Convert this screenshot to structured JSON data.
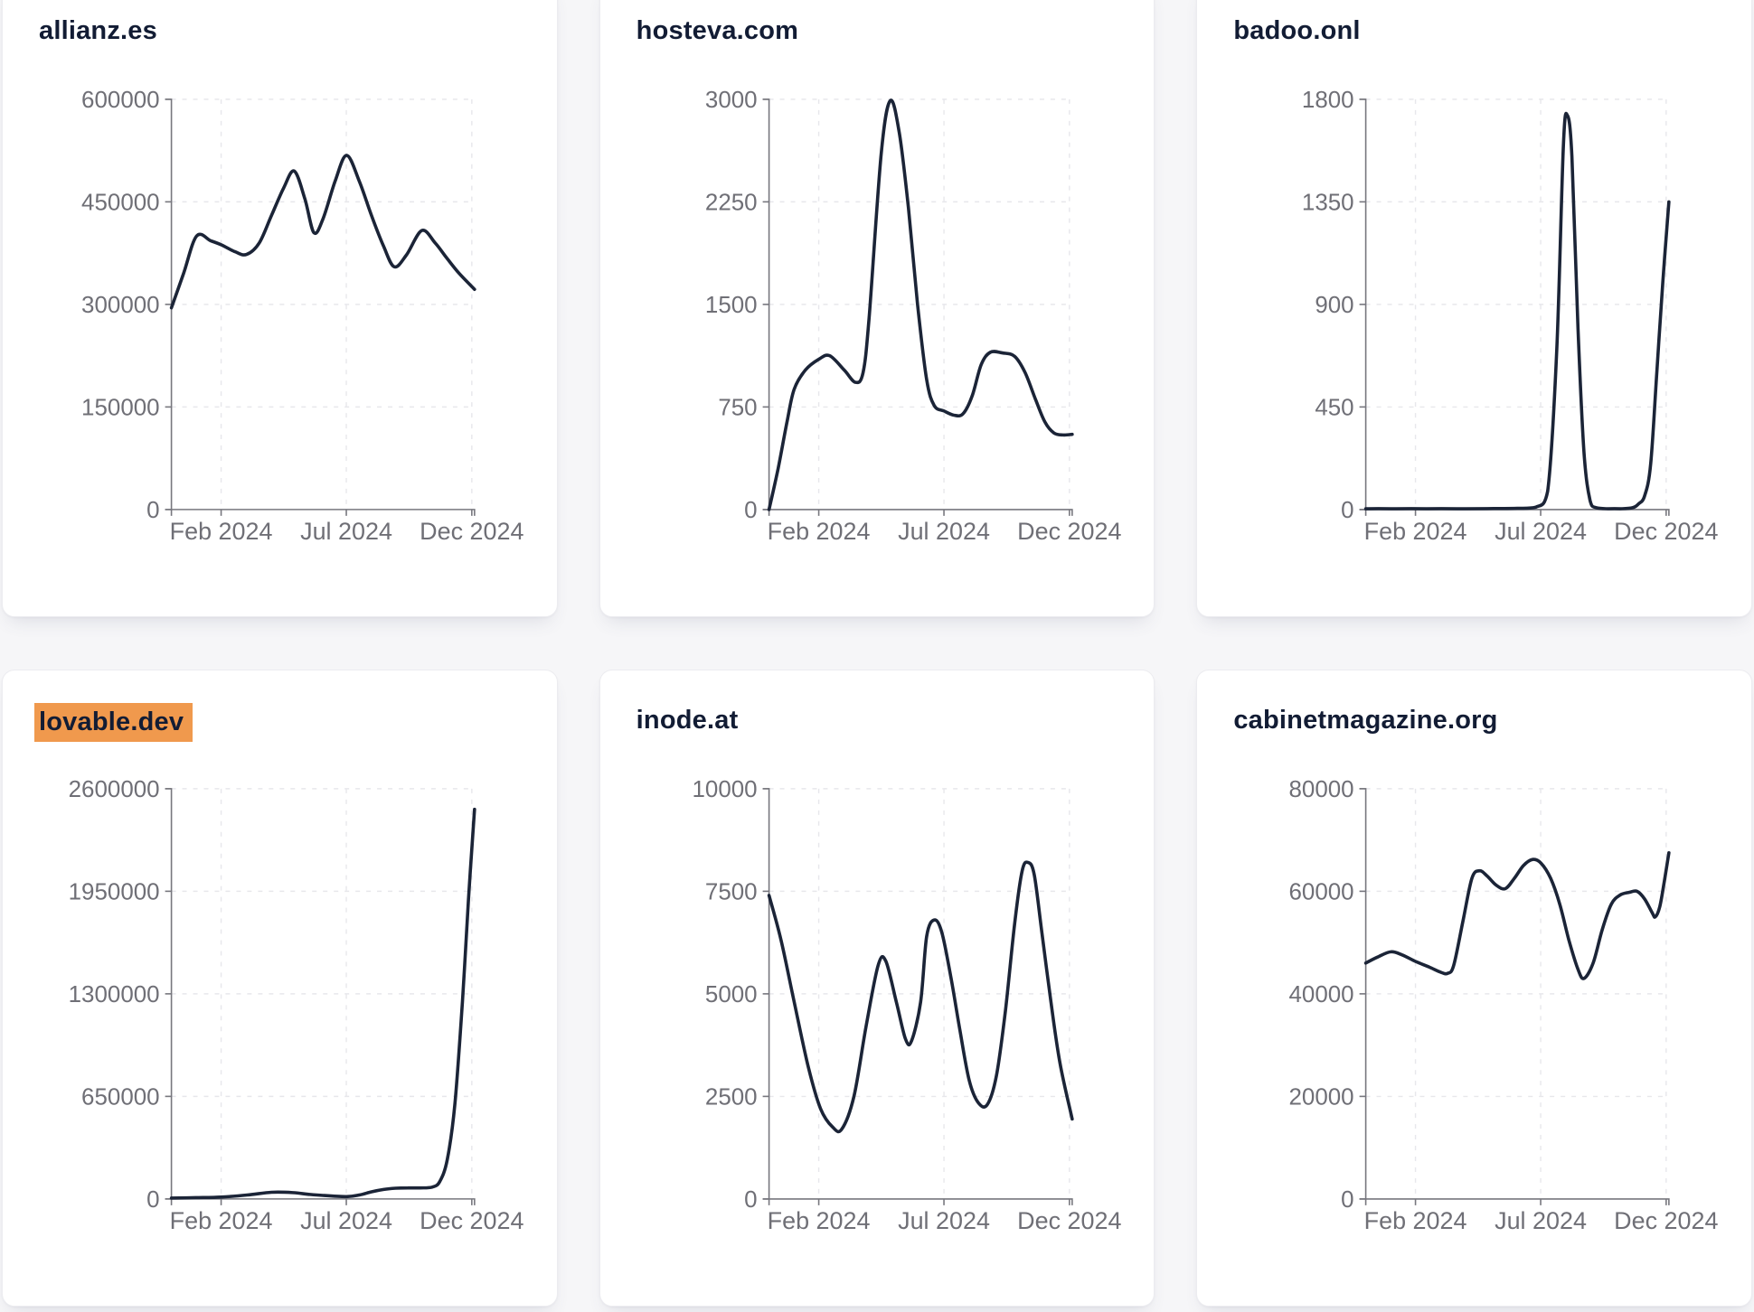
{
  "page": {
    "background_color": "#f6f6f8",
    "card_background": "#ffffff",
    "line_color": "#1b2437",
    "axis_color": "#77777e",
    "grid_color": "#e7e7eb",
    "title_color": "#121c34",
    "highlight_color": "#f0994d"
  },
  "chart_data": [
    {
      "type": "line",
      "title": "allianz.es",
      "title_highlighted": false,
      "ylim": [
        0,
        600000
      ],
      "yticks": [
        0,
        150000,
        300000,
        450000,
        600000
      ],
      "xticks": [
        {
          "pos": 0.164,
          "label": "Feb 2024"
        },
        {
          "pos": 0.577,
          "label": "Jul 2024"
        },
        {
          "pos": 0.991,
          "label": "Dec 2024"
        }
      ],
      "grid": true,
      "x_unit": "fraction_of_axis",
      "points": [
        [
          0,
          295000
        ],
        [
          0.04,
          345000
        ],
        [
          0.083,
          400000
        ],
        [
          0.13,
          393000
        ],
        [
          0.165,
          387000
        ],
        [
          0.21,
          377000
        ],
        [
          0.248,
          373000
        ],
        [
          0.29,
          390000
        ],
        [
          0.33,
          430000
        ],
        [
          0.37,
          470000
        ],
        [
          0.405,
          495000
        ],
        [
          0.44,
          455000
        ],
        [
          0.47,
          405000
        ],
        [
          0.5,
          425000
        ],
        [
          0.54,
          480000
        ],
        [
          0.578,
          518000
        ],
        [
          0.62,
          480000
        ],
        [
          0.66,
          430000
        ],
        [
          0.7,
          385000
        ],
        [
          0.735,
          355000
        ],
        [
          0.775,
          372000
        ],
        [
          0.826,
          408000
        ],
        [
          0.87,
          390000
        ],
        [
          0.908,
          368000
        ],
        [
          0.95,
          345000
        ],
        [
          1.0,
          322000
        ]
      ]
    },
    {
      "type": "line",
      "title": "hosteva.com",
      "title_highlighted": false,
      "ylim": [
        0,
        3000
      ],
      "yticks": [
        0,
        750,
        1500,
        2250,
        3000
      ],
      "xticks": [
        {
          "pos": 0.164,
          "label": "Feb 2024"
        },
        {
          "pos": 0.577,
          "label": "Jul 2024"
        },
        {
          "pos": 0.991,
          "label": "Dec 2024"
        }
      ],
      "grid": true,
      "x_unit": "fraction_of_axis",
      "points": [
        [
          0,
          0
        ],
        [
          0.03,
          300
        ],
        [
          0.06,
          650
        ],
        [
          0.083,
          880
        ],
        [
          0.12,
          1020
        ],
        [
          0.165,
          1100
        ],
        [
          0.2,
          1125
        ],
        [
          0.248,
          1020
        ],
        [
          0.285,
          930
        ],
        [
          0.31,
          1000
        ],
        [
          0.33,
          1400
        ],
        [
          0.37,
          2600
        ],
        [
          0.4,
          2990
        ],
        [
          0.43,
          2750
        ],
        [
          0.46,
          2200
        ],
        [
          0.49,
          1500
        ],
        [
          0.52,
          950
        ],
        [
          0.545,
          760
        ],
        [
          0.578,
          720
        ],
        [
          0.61,
          690
        ],
        [
          0.64,
          700
        ],
        [
          0.67,
          830
        ],
        [
          0.7,
          1060
        ],
        [
          0.73,
          1150
        ],
        [
          0.77,
          1145
        ],
        [
          0.81,
          1120
        ],
        [
          0.845,
          1000
        ],
        [
          0.88,
          800
        ],
        [
          0.91,
          640
        ],
        [
          0.94,
          560
        ],
        [
          0.97,
          545
        ],
        [
          1.0,
          550
        ]
      ]
    },
    {
      "type": "line",
      "title": "badoo.onl",
      "title_highlighted": false,
      "ylim": [
        0,
        1800
      ],
      "yticks": [
        0,
        450,
        900,
        1350,
        1800
      ],
      "xticks": [
        {
          "pos": 0.164,
          "label": "Feb 2024"
        },
        {
          "pos": 0.577,
          "label": "Jul 2024"
        },
        {
          "pos": 0.991,
          "label": "Dec 2024"
        }
      ],
      "grid": true,
      "x_unit": "fraction_of_axis",
      "points": [
        [
          0,
          3
        ],
        [
          0.1,
          3
        ],
        [
          0.2,
          3
        ],
        [
          0.3,
          3
        ],
        [
          0.4,
          4
        ],
        [
          0.5,
          5
        ],
        [
          0.56,
          10
        ],
        [
          0.6,
          80
        ],
        [
          0.63,
          700
        ],
        [
          0.652,
          1600
        ],
        [
          0.665,
          1730
        ],
        [
          0.68,
          1550
        ],
        [
          0.7,
          800
        ],
        [
          0.72,
          250
        ],
        [
          0.74,
          40
        ],
        [
          0.76,
          8
        ],
        [
          0.8,
          3
        ],
        [
          0.84,
          3
        ],
        [
          0.88,
          8
        ],
        [
          0.9,
          25
        ],
        [
          0.92,
          60
        ],
        [
          0.94,
          200
        ],
        [
          0.96,
          600
        ],
        [
          0.98,
          1000
        ],
        [
          1.0,
          1350
        ]
      ]
    },
    {
      "type": "line",
      "title": "lovable.dev",
      "title_highlighted": true,
      "ylim": [
        0,
        2600000
      ],
      "yticks": [
        0,
        650000,
        1300000,
        1950000,
        2600000
      ],
      "xticks": [
        {
          "pos": 0.164,
          "label": "Feb 2024"
        },
        {
          "pos": 0.577,
          "label": "Jul 2024"
        },
        {
          "pos": 0.991,
          "label": "Dec 2024"
        }
      ],
      "grid": true,
      "x_unit": "fraction_of_axis",
      "points": [
        [
          0,
          5000
        ],
        [
          0.08,
          8000
        ],
        [
          0.165,
          12000
        ],
        [
          0.25,
          25000
        ],
        [
          0.33,
          42000
        ],
        [
          0.4,
          40000
        ],
        [
          0.45,
          30000
        ],
        [
          0.5,
          22000
        ],
        [
          0.578,
          15000
        ],
        [
          0.62,
          25000
        ],
        [
          0.66,
          45000
        ],
        [
          0.7,
          60000
        ],
        [
          0.74,
          68000
        ],
        [
          0.78,
          70000
        ],
        [
          0.82,
          70000
        ],
        [
          0.86,
          75000
        ],
        [
          0.885,
          110000
        ],
        [
          0.91,
          250000
        ],
        [
          0.935,
          600000
        ],
        [
          0.96,
          1250000
        ],
        [
          0.98,
          1900000
        ],
        [
          1.0,
          2470000
        ]
      ]
    },
    {
      "type": "line",
      "title": "inode.at",
      "title_highlighted": false,
      "ylim": [
        0,
        10000
      ],
      "yticks": [
        0,
        2500,
        5000,
        7500,
        10000
      ],
      "xticks": [
        {
          "pos": 0.164,
          "label": "Feb 2024"
        },
        {
          "pos": 0.577,
          "label": "Jul 2024"
        },
        {
          "pos": 0.991,
          "label": "Dec 2024"
        }
      ],
      "grid": true,
      "x_unit": "fraction_of_axis",
      "points": [
        [
          0,
          7400
        ],
        [
          0.04,
          6300
        ],
        [
          0.083,
          4800
        ],
        [
          0.13,
          3200
        ],
        [
          0.17,
          2200
        ],
        [
          0.21,
          1750
        ],
        [
          0.24,
          1700
        ],
        [
          0.28,
          2500
        ],
        [
          0.32,
          4200
        ],
        [
          0.36,
          5700
        ],
        [
          0.385,
          5800
        ],
        [
          0.42,
          4800
        ],
        [
          0.45,
          3900
        ],
        [
          0.47,
          3850
        ],
        [
          0.5,
          4800
        ],
        [
          0.52,
          6400
        ],
        [
          0.545,
          6800
        ],
        [
          0.57,
          6500
        ],
        [
          0.6,
          5400
        ],
        [
          0.63,
          4100
        ],
        [
          0.66,
          2900
        ],
        [
          0.69,
          2350
        ],
        [
          0.72,
          2300
        ],
        [
          0.75,
          3000
        ],
        [
          0.78,
          4600
        ],
        [
          0.81,
          6700
        ],
        [
          0.835,
          8000
        ],
        [
          0.855,
          8200
        ],
        [
          0.875,
          7900
        ],
        [
          0.9,
          6500
        ],
        [
          0.93,
          4800
        ],
        [
          0.96,
          3300
        ],
        [
          1.0,
          1950
        ]
      ]
    },
    {
      "type": "line",
      "title": "cabinetmagazine.org",
      "title_highlighted": false,
      "ylim": [
        0,
        80000
      ],
      "yticks": [
        0,
        20000,
        40000,
        60000,
        80000
      ],
      "xticks": [
        {
          "pos": 0.164,
          "label": "Feb 2024"
        },
        {
          "pos": 0.577,
          "label": "Jul 2024"
        },
        {
          "pos": 0.991,
          "label": "Dec 2024"
        }
      ],
      "grid": true,
      "x_unit": "fraction_of_axis",
      "points": [
        [
          0,
          46000
        ],
        [
          0.04,
          47200
        ],
        [
          0.083,
          48200
        ],
        [
          0.12,
          47600
        ],
        [
          0.165,
          46300
        ],
        [
          0.21,
          45200
        ],
        [
          0.248,
          44200
        ],
        [
          0.27,
          44000
        ],
        [
          0.29,
          45500
        ],
        [
          0.32,
          54000
        ],
        [
          0.35,
          62500
        ],
        [
          0.375,
          64000
        ],
        [
          0.4,
          63000
        ],
        [
          0.43,
          61200
        ],
        [
          0.46,
          60500
        ],
        [
          0.49,
          62500
        ],
        [
          0.52,
          65000
        ],
        [
          0.55,
          66200
        ],
        [
          0.578,
          65500
        ],
        [
          0.61,
          62500
        ],
        [
          0.64,
          57500
        ],
        [
          0.67,
          50500
        ],
        [
          0.7,
          44800
        ],
        [
          0.72,
          43000
        ],
        [
          0.75,
          46000
        ],
        [
          0.78,
          52500
        ],
        [
          0.81,
          57500
        ],
        [
          0.84,
          59300
        ],
        [
          0.87,
          59800
        ],
        [
          0.895,
          60000
        ],
        [
          0.92,
          58500
        ],
        [
          0.945,
          55800
        ],
        [
          0.955,
          55000
        ],
        [
          0.97,
          57000
        ],
        [
          0.985,
          62000
        ],
        [
          1.0,
          67500
        ]
      ]
    }
  ]
}
